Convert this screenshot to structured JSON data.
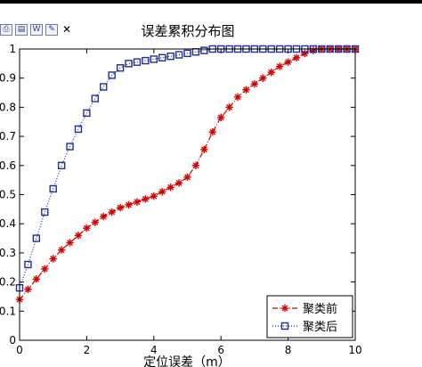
{
  "toolbar": {
    "icons": [
      "printer-icon",
      "document-icon",
      "word-icon",
      "edit-icon"
    ],
    "close_glyph": "✕"
  },
  "chart_data": {
    "type": "line",
    "title": "误差累积分布图",
    "xlabel": "定位误差（m）",
    "ylabel": "",
    "xlim": [
      0,
      10
    ],
    "ylim": [
      0,
      1
    ],
    "xticks": [
      0,
      2,
      4,
      6,
      8,
      10
    ],
    "yticks": [
      0,
      0.1,
      0.2,
      0.3,
      0.4,
      0.5,
      0.6,
      0.7,
      0.8,
      0.9,
      1
    ],
    "ytick_labels": [
      "0",
      "0.1",
      "0.2",
      "0.3",
      "0.4",
      "0.5",
      "0.6",
      "0.7",
      "0.8",
      "0.9",
      "1"
    ],
    "legend_position": "bottom-right",
    "series": [
      {
        "name": "聚类前",
        "color": "#d40000",
        "line_style": "dash-dot",
        "marker": "asterisk",
        "x": [
          0,
          0.25,
          0.5,
          0.75,
          1,
          1.25,
          1.5,
          1.75,
          2,
          2.25,
          2.5,
          2.75,
          3,
          3.25,
          3.5,
          3.75,
          4,
          4.25,
          4.5,
          4.75,
          5,
          5.25,
          5.5,
          5.75,
          6,
          6.25,
          6.5,
          6.75,
          7,
          7.25,
          7.5,
          7.75,
          8,
          8.25,
          8.5,
          8.75,
          9,
          9.25,
          9.5,
          9.75,
          10
        ],
        "y": [
          0.14,
          0.175,
          0.21,
          0.245,
          0.28,
          0.31,
          0.335,
          0.36,
          0.385,
          0.405,
          0.425,
          0.44,
          0.455,
          0.465,
          0.475,
          0.485,
          0.495,
          0.51,
          0.525,
          0.54,
          0.56,
          0.6,
          0.655,
          0.715,
          0.765,
          0.8,
          0.835,
          0.86,
          0.88,
          0.9,
          0.92,
          0.94,
          0.955,
          0.97,
          0.985,
          0.995,
          1,
          1,
          1,
          1,
          1
        ]
      },
      {
        "name": "聚类后",
        "color": "#1f2f9a",
        "line_style": "dotted",
        "marker": "square",
        "x": [
          0,
          0.25,
          0.5,
          0.75,
          1,
          1.25,
          1.5,
          1.75,
          2,
          2.25,
          2.5,
          2.75,
          3,
          3.25,
          3.5,
          3.75,
          4,
          4.25,
          4.5,
          4.75,
          5,
          5.25,
          5.5,
          5.75,
          6,
          6.25,
          6.5,
          6.75,
          7,
          7.25,
          7.5,
          7.75,
          8,
          8.25,
          8.5,
          8.75,
          9,
          9.25,
          9.5,
          9.75,
          10
        ],
        "y": [
          0.18,
          0.26,
          0.35,
          0.44,
          0.52,
          0.6,
          0.665,
          0.725,
          0.78,
          0.83,
          0.87,
          0.91,
          0.935,
          0.95,
          0.955,
          0.96,
          0.965,
          0.97,
          0.975,
          0.98,
          0.985,
          0.99,
          0.995,
          1,
          1,
          1,
          1,
          1,
          1,
          1,
          1,
          1,
          1,
          1,
          1,
          1,
          1,
          1,
          1,
          1,
          1
        ]
      }
    ]
  }
}
